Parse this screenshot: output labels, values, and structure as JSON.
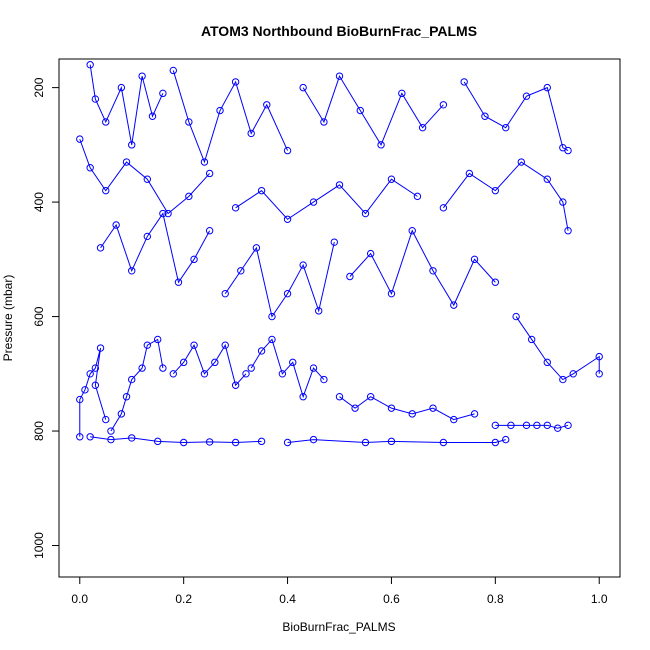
{
  "chart_data": {
    "type": "scatter",
    "title": "ATOM3 Northbound BioBurnFrac_PALMS",
    "xlabel": "BioBurnFrac_PALMS",
    "ylabel": "Pressure (mbar)",
    "xlim": [
      -0.04,
      1.04
    ],
    "ylim": [
      1055,
      150
    ],
    "y_reversed": true,
    "x_ticks": [
      "0.0",
      "0.2",
      "0.4",
      "0.6",
      "0.8",
      "1.0"
    ],
    "y_ticks": [
      "200",
      "400",
      "600",
      "800",
      "1000"
    ],
    "marker": "open-circle",
    "connected": true,
    "color": "#0000ff",
    "grid": false,
    "series": [
      {
        "values": [
          [
            0.0,
            810
          ],
          [
            0.0,
            745
          ],
          [
            0.01,
            728
          ],
          [
            0.02,
            700
          ],
          [
            0.03,
            690
          ],
          [
            0.04,
            655
          ],
          [
            0.03,
            720
          ],
          [
            0.05,
            780
          ]
        ]
      },
      {
        "values": [
          [
            0.06,
            800
          ],
          [
            0.08,
            770
          ],
          [
            0.09,
            740
          ],
          [
            0.1,
            710
          ],
          [
            0.12,
            690
          ],
          [
            0.13,
            650
          ],
          [
            0.15,
            640
          ],
          [
            0.16,
            690
          ]
        ]
      },
      {
        "values": [
          [
            0.18,
            700
          ],
          [
            0.2,
            680
          ],
          [
            0.22,
            650
          ],
          [
            0.24,
            700
          ],
          [
            0.26,
            680
          ],
          [
            0.28,
            650
          ],
          [
            0.3,
            720
          ],
          [
            0.32,
            700
          ]
        ]
      },
      {
        "values": [
          [
            0.33,
            690
          ],
          [
            0.35,
            660
          ],
          [
            0.37,
            640
          ],
          [
            0.39,
            700
          ],
          [
            0.41,
            680
          ],
          [
            0.43,
            740
          ],
          [
            0.45,
            690
          ],
          [
            0.47,
            710
          ]
        ]
      },
      {
        "values": [
          [
            0.5,
            740
          ],
          [
            0.53,
            760
          ],
          [
            0.56,
            740
          ],
          [
            0.6,
            760
          ],
          [
            0.64,
            770
          ],
          [
            0.68,
            760
          ],
          [
            0.72,
            780
          ],
          [
            0.76,
            770
          ]
        ]
      },
      {
        "values": [
          [
            0.8,
            790
          ],
          [
            0.83,
            790
          ],
          [
            0.86,
            790
          ],
          [
            0.88,
            790
          ],
          [
            0.9,
            790
          ],
          [
            0.92,
            795
          ],
          [
            0.94,
            790
          ]
        ]
      },
      {
        "values": [
          [
            0.02,
            160
          ],
          [
            0.03,
            220
          ],
          [
            0.05,
            260
          ],
          [
            0.08,
            200
          ],
          [
            0.1,
            300
          ],
          [
            0.12,
            180
          ],
          [
            0.14,
            250
          ],
          [
            0.16,
            210
          ]
        ]
      },
      {
        "values": [
          [
            0.18,
            170
          ],
          [
            0.21,
            260
          ],
          [
            0.24,
            330
          ],
          [
            0.27,
            240
          ],
          [
            0.3,
            190
          ],
          [
            0.33,
            280
          ],
          [
            0.36,
            230
          ],
          [
            0.4,
            310
          ]
        ]
      },
      {
        "values": [
          [
            0.43,
            200
          ],
          [
            0.47,
            260
          ],
          [
            0.5,
            180
          ],
          [
            0.54,
            240
          ],
          [
            0.58,
            300
          ],
          [
            0.62,
            210
          ],
          [
            0.66,
            270
          ],
          [
            0.7,
            230
          ]
        ]
      },
      {
        "values": [
          [
            0.74,
            190
          ],
          [
            0.78,
            250
          ],
          [
            0.82,
            270
          ],
          [
            0.86,
            215
          ],
          [
            0.9,
            200
          ],
          [
            0.93,
            305
          ],
          [
            0.94,
            310
          ]
        ]
      },
      {
        "values": [
          [
            0.04,
            480
          ],
          [
            0.07,
            440
          ],
          [
            0.1,
            520
          ],
          [
            0.13,
            460
          ],
          [
            0.16,
            420
          ],
          [
            0.19,
            540
          ],
          [
            0.22,
            500
          ],
          [
            0.25,
            450
          ]
        ]
      },
      {
        "values": [
          [
            0.28,
            560
          ],
          [
            0.31,
            520
          ],
          [
            0.34,
            480
          ],
          [
            0.37,
            600
          ],
          [
            0.4,
            560
          ],
          [
            0.43,
            510
          ],
          [
            0.46,
            590
          ],
          [
            0.49,
            470
          ]
        ]
      },
      {
        "values": [
          [
            0.52,
            530
          ],
          [
            0.56,
            490
          ],
          [
            0.6,
            560
          ],
          [
            0.64,
            450
          ],
          [
            0.68,
            520
          ],
          [
            0.72,
            580
          ],
          [
            0.76,
            500
          ],
          [
            0.8,
            540
          ]
        ]
      },
      {
        "values": [
          [
            0.84,
            600
          ],
          [
            0.87,
            640
          ],
          [
            0.9,
            680
          ],
          [
            0.93,
            710
          ],
          [
            0.95,
            700
          ],
          [
            1.0,
            670
          ],
          [
            1.0,
            700
          ]
        ]
      },
      {
        "values": [
          [
            0.0,
            290
          ],
          [
            0.02,
            340
          ],
          [
            0.05,
            380
          ],
          [
            0.09,
            330
          ],
          [
            0.13,
            360
          ],
          [
            0.17,
            420
          ],
          [
            0.21,
            390
          ],
          [
            0.25,
            350
          ]
        ]
      },
      {
        "values": [
          [
            0.3,
            410
          ],
          [
            0.35,
            380
          ],
          [
            0.4,
            430
          ],
          [
            0.45,
            400
          ],
          [
            0.5,
            370
          ],
          [
            0.55,
            420
          ],
          [
            0.6,
            360
          ],
          [
            0.65,
            390
          ]
        ]
      },
      {
        "values": [
          [
            0.7,
            410
          ],
          [
            0.75,
            350
          ],
          [
            0.8,
            380
          ],
          [
            0.85,
            330
          ],
          [
            0.9,
            360
          ],
          [
            0.93,
            400
          ],
          [
            0.94,
            450
          ]
        ]
      },
      {
        "values": [
          [
            0.02,
            810
          ],
          [
            0.06,
            815
          ],
          [
            0.1,
            812
          ],
          [
            0.15,
            818
          ],
          [
            0.2,
            820
          ],
          [
            0.25,
            819
          ],
          [
            0.3,
            820
          ],
          [
            0.35,
            818
          ]
        ]
      },
      {
        "values": [
          [
            0.4,
            820
          ],
          [
            0.45,
            815
          ],
          [
            0.55,
            820
          ],
          [
            0.6,
            818
          ],
          [
            0.7,
            820
          ],
          [
            0.8,
            820
          ],
          [
            0.82,
            815
          ]
        ]
      }
    ]
  }
}
